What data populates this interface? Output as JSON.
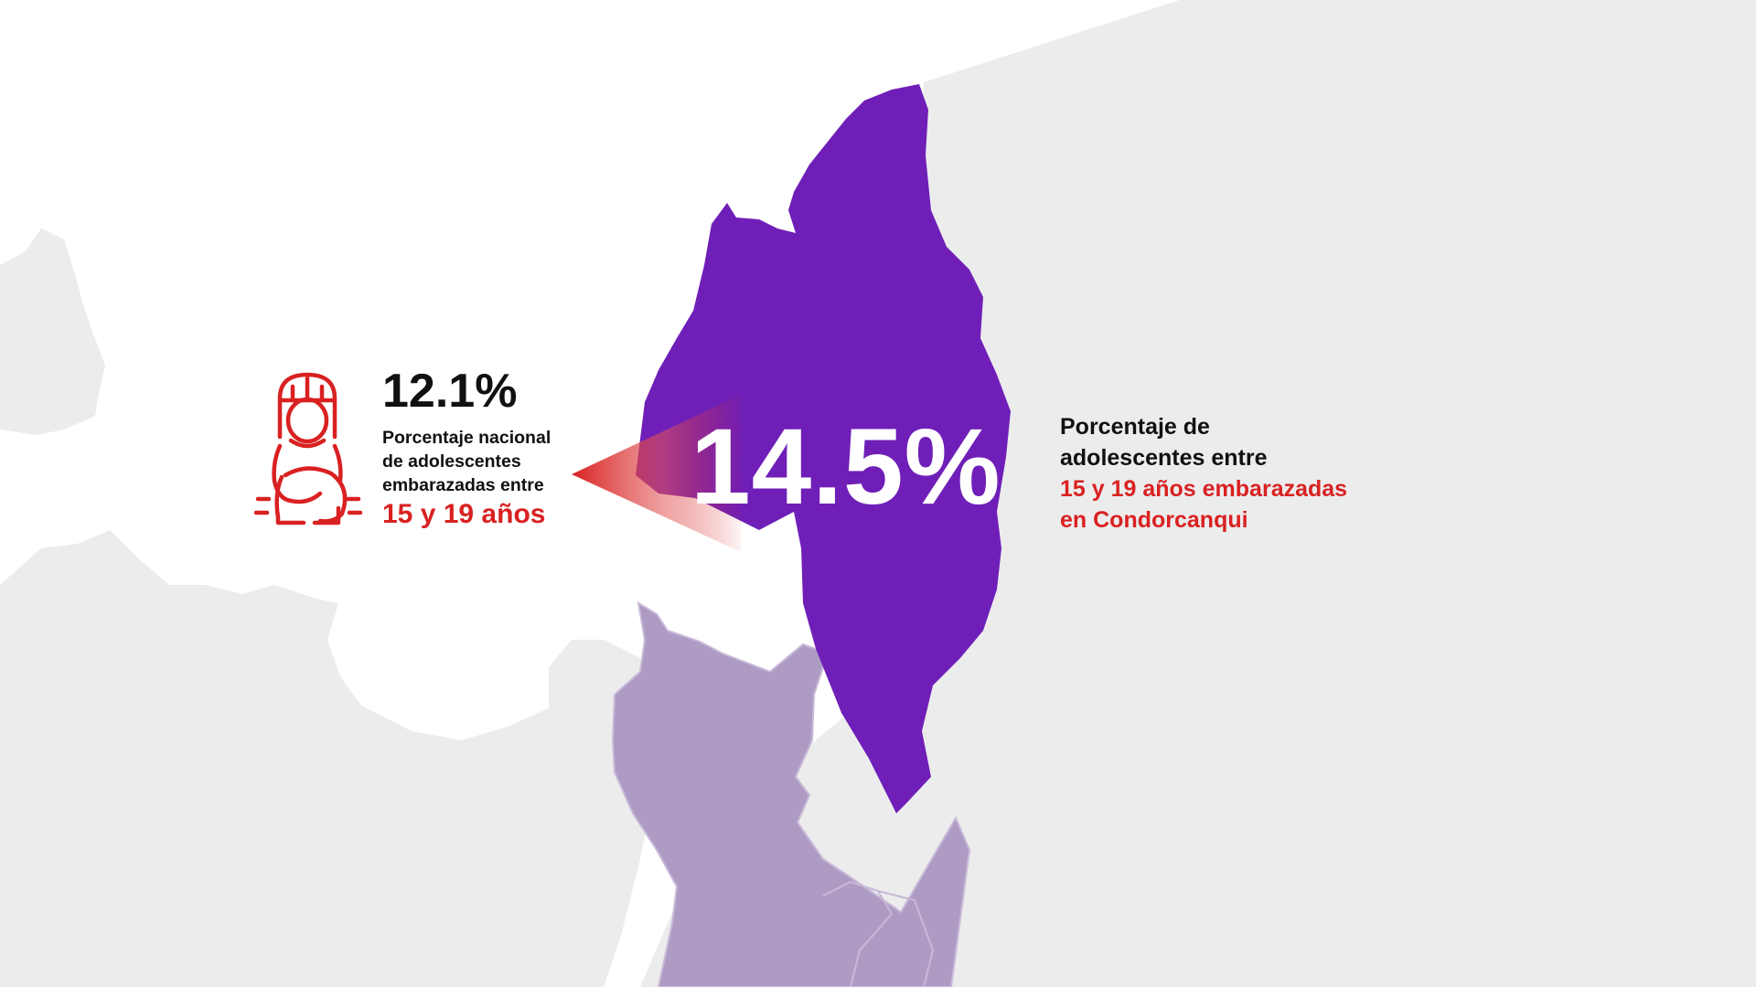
{
  "colors": {
    "background": "#ffffff",
    "land_neutral": "#ececed",
    "highlight_region": "#6f1fb8",
    "neighbor_regions": "#ae9bc4",
    "accent_red": "#d92121",
    "text_dark": "#111111"
  },
  "region_stat": {
    "value": "14.5%",
    "description_lines_dark": [
      "Porcentaje de",
      "adolescentes entre"
    ],
    "description_lines_red": [
      "15 y 19 años embarazadas",
      "en Condorcanqui"
    ]
  },
  "national_stat": {
    "value": "12.1%",
    "description_lines": [
      "Porcentaje nacional",
      "de adolescentes",
      "embarazadas entre"
    ],
    "highlight": "15 y 19 años",
    "icon": "pregnant-woman-icon"
  }
}
